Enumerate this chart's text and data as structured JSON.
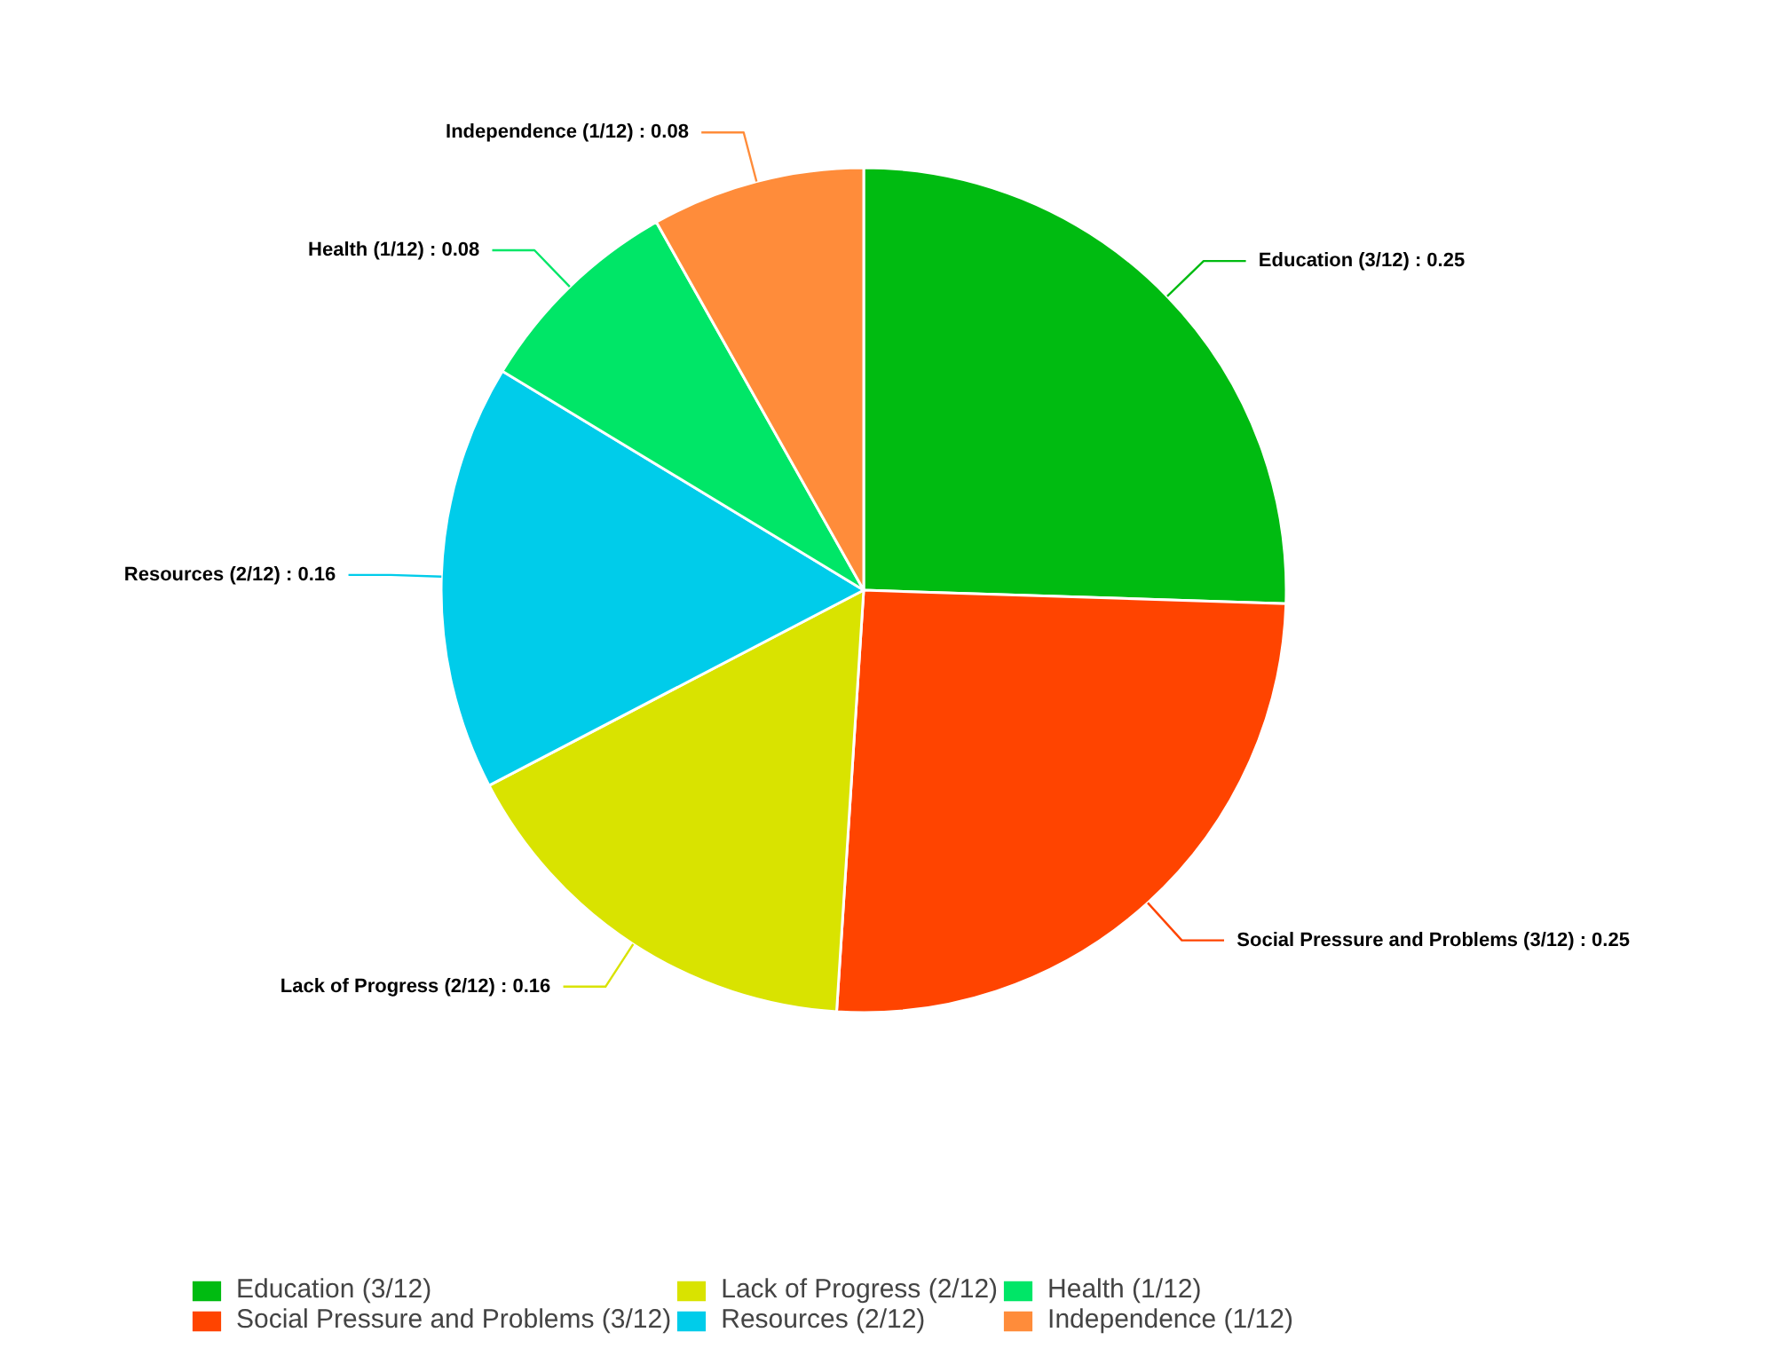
{
  "chart_data": {
    "type": "pie",
    "categories": [
      "Education (3/12)",
      "Social Pressure and Problems (3/12)",
      "Lack of Progress (2/12)",
      "Resources (2/12)",
      "Health (1/12)",
      "Independence (1/12)"
    ],
    "values": [
      0.25,
      0.25,
      0.16,
      0.16,
      0.08,
      0.08
    ],
    "colors": [
      "#00bb11",
      "#ff4400",
      "#d9e300",
      "#00ccea",
      "#00e667",
      "#ff8c3a"
    ],
    "value_labels": [
      "Education (3/12) : 0.25",
      "Social Pressure and Problems (3/12) : 0.25",
      "Lack of Progress (2/12) : 0.16",
      "Resources (2/12) : 0.16",
      "Health (1/12) : 0.08",
      "Independence (1/12) : 0.08"
    ],
    "legend": "bottom"
  }
}
